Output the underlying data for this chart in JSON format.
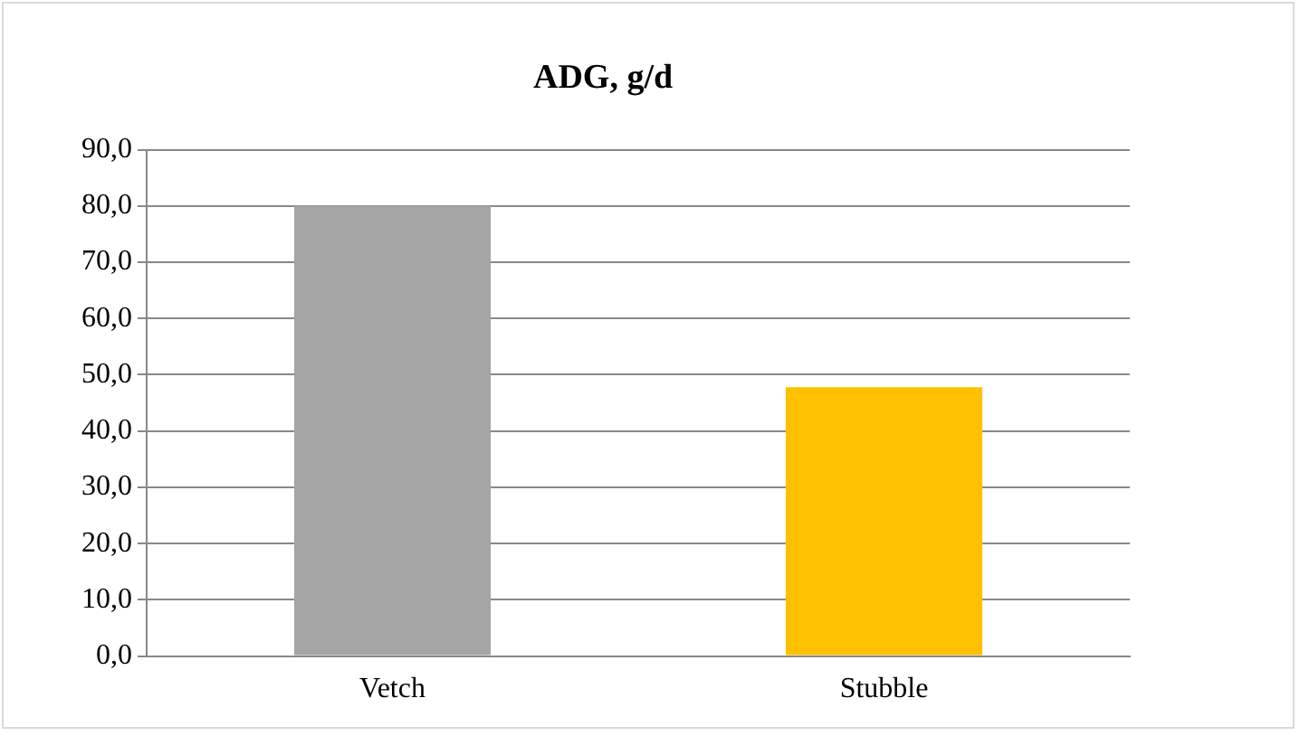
{
  "chart_data": {
    "type": "bar",
    "title": "ADG, g/d",
    "categories": [
      "Vetch",
      "Stubble"
    ],
    "values": [
      80,
      47.8
    ],
    "colors": [
      "#a5a5a5",
      "#ffc000"
    ],
    "ylim": [
      0,
      90
    ],
    "yticks": [
      {
        "value": 0,
        "label": "0,0"
      },
      {
        "value": 10,
        "label": "10,0"
      },
      {
        "value": 20,
        "label": "20,0"
      },
      {
        "value": 30,
        "label": "30,0"
      },
      {
        "value": 40,
        "label": "40,0"
      },
      {
        "value": 50,
        "label": "50,0"
      },
      {
        "value": 60,
        "label": "60,0"
      },
      {
        "value": 70,
        "label": "70,0"
      },
      {
        "value": 80,
        "label": "80,0"
      },
      {
        "value": 90,
        "label": "90,0"
      }
    ],
    "grid": "y",
    "legend": false
  }
}
